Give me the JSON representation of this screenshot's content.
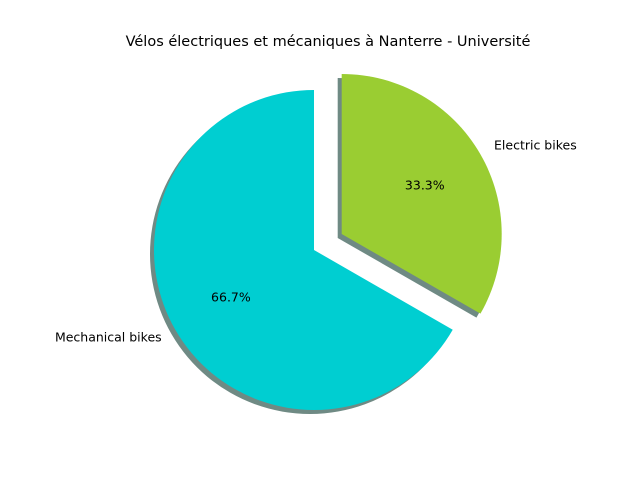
{
  "chart_data": {
    "type": "pie",
    "title": "Vélos électriques et mécaniques à Nanterre - Université",
    "slices": [
      {
        "label": "Mechanical bikes",
        "value": 66.7,
        "pct_label": "66.7%",
        "color": "#00CED1",
        "exploded": false
      },
      {
        "label": "Electric bikes",
        "value": 33.3,
        "pct_label": "33.3%",
        "color": "#9ACD32",
        "exploded": true
      }
    ],
    "start_angle_deg": 90,
    "direction": "counterclockwise",
    "shadow": true,
    "shadow_color": "#6f8a84"
  }
}
